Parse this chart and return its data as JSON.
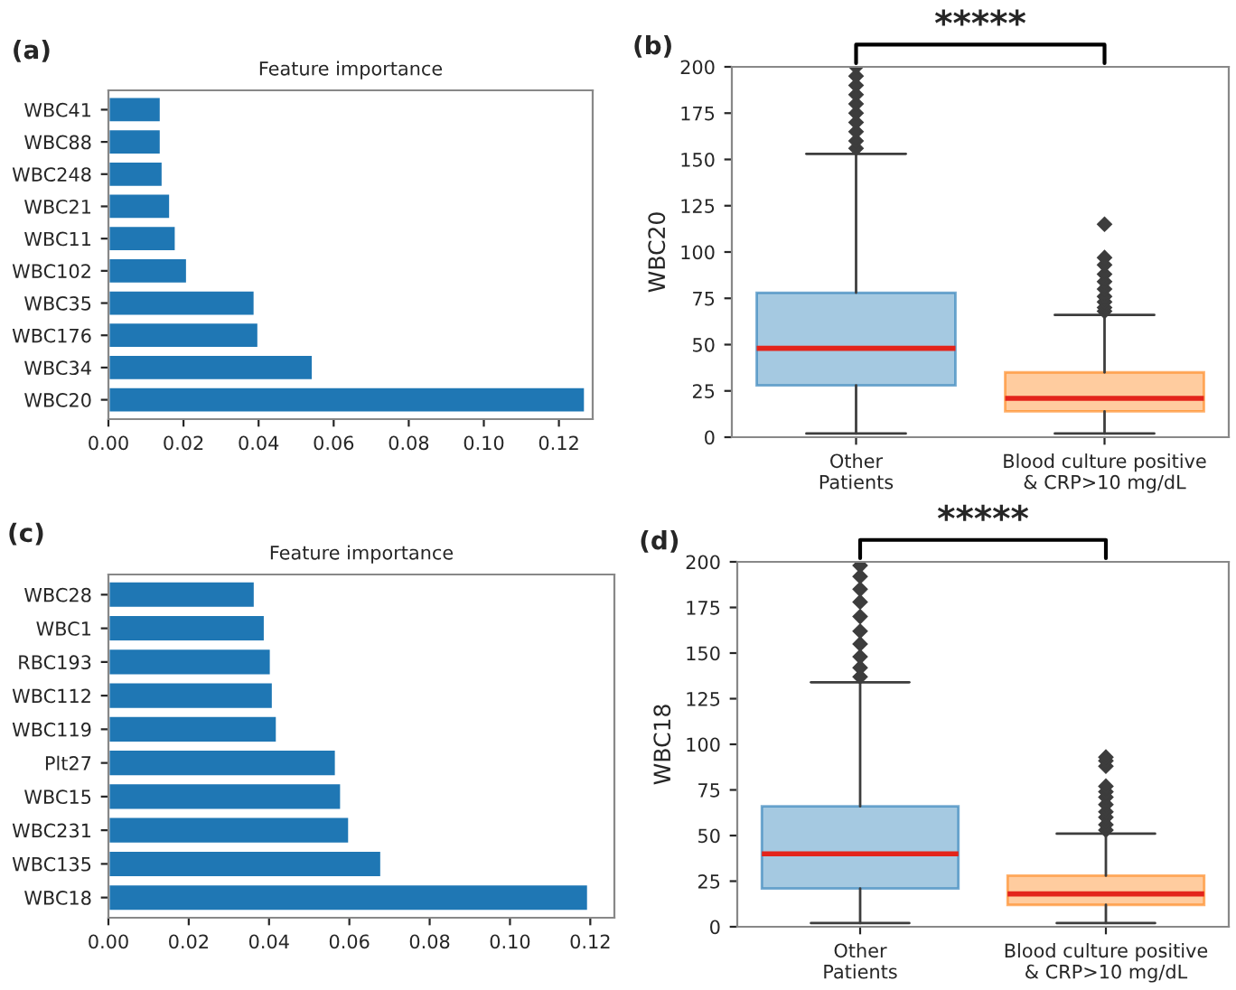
{
  "chart_data": [
    {
      "type": "bar",
      "orientation": "horizontal",
      "title": "Feature importance",
      "annotations": [
        "(a)"
      ],
      "categories": [
        "WBC41",
        "WBC88",
        "WBC248",
        "WBC21",
        "WBC11",
        "WBC102",
        "WBC35",
        "WBC176",
        "WBC34",
        "WBC20"
      ],
      "values": [
        0.014,
        0.014,
        0.0145,
        0.0165,
        0.018,
        0.021,
        0.039,
        0.04,
        0.0545,
        0.127
      ],
      "color": "#1f77b4",
      "xlim": [
        0,
        0.129
      ],
      "xticks": [
        {
          "value": 0,
          "label": "0.00"
        },
        {
          "value": 0.02,
          "label": "0.02"
        },
        {
          "value": 0.04,
          "label": "0.04"
        },
        {
          "value": 0.06,
          "label": "0.06"
        },
        {
          "value": 0.08,
          "label": "0.08"
        },
        {
          "value": 0.1,
          "label": "0.10"
        },
        {
          "value": 0.12,
          "label": "0.12"
        }
      ],
      "grid": false
    },
    {
      "type": "box",
      "ylabel": "WBC20",
      "annotations": [
        "(b)",
        "*****"
      ],
      "categories": [
        "Other\nPatients",
        "Blood culture positive\n& CRP>10 mg/dL"
      ],
      "series": [
        {
          "color": "#1f77b4",
          "boxes": [
            {
              "low": 2,
              "q1": 28,
              "median": 48,
              "q3": 78,
              "high": 153,
              "outliers": [
                156,
                160,
                165,
                170,
                175,
                180,
                185,
                190,
                195,
                200
              ]
            },
            null
          ]
        },
        {
          "color": "#ff7f0e",
          "boxes": [
            null,
            {
              "low": 2,
              "q1": 14,
              "median": 21,
              "q3": 35,
              "high": 66,
              "outliers": [
                68,
                70,
                73,
                76,
                80,
                84,
                88,
                93,
                97,
                115
              ]
            }
          ]
        }
      ],
      "ylim": [
        0,
        200
      ],
      "yticks": [
        0,
        25,
        50,
        75,
        100,
        125,
        150,
        175,
        200
      ],
      "grid": false,
      "marker": "diamond"
    },
    {
      "type": "bar",
      "orientation": "horizontal",
      "title": "Feature importance",
      "annotations": [
        "(c)"
      ],
      "categories": [
        "WBC28",
        "WBC1",
        "RBC193",
        "WBC112",
        "WBC119",
        "Plt27",
        "WBC15",
        "WBC231",
        "WBC135",
        "WBC18"
      ],
      "values": [
        0.0365,
        0.039,
        0.0405,
        0.041,
        0.042,
        0.0567,
        0.058,
        0.06,
        0.068,
        0.1195
      ],
      "color": "#1f77b4",
      "xlim": [
        0,
        0.126
      ],
      "xticks": [
        {
          "value": 0,
          "label": "0.00"
        },
        {
          "value": 0.02,
          "label": "0.02"
        },
        {
          "value": 0.04,
          "label": "0.04"
        },
        {
          "value": 0.06,
          "label": "0.06"
        },
        {
          "value": 0.08,
          "label": "0.08"
        },
        {
          "value": 0.1,
          "label": "0.10"
        },
        {
          "value": 0.12,
          "label": "0.12"
        }
      ],
      "grid": false
    },
    {
      "type": "box",
      "ylabel": "WBC18",
      "annotations": [
        "(d)",
        "*****"
      ],
      "categories": [
        "Other\nPatients",
        "Blood culture positive\n& CRP>10 mg/dL"
      ],
      "series": [
        {
          "color": "#1f77b4",
          "boxes": [
            {
              "low": 2,
              "q1": 21,
              "median": 40,
              "q3": 66,
              "high": 134,
              "outliers": [
                137,
                142,
                148,
                155,
                162,
                170,
                178,
                185,
                192,
                198
              ]
            },
            null
          ]
        },
        {
          "color": "#ff7f0e",
          "boxes": [
            null,
            {
              "low": 2,
              "q1": 12,
              "median": 18,
              "q3": 28,
              "high": 51,
              "outliers": [
                53,
                56,
                60,
                63,
                67,
                71,
                74,
                77,
                88,
                91,
                93
              ]
            }
          ]
        }
      ],
      "ylim": [
        0,
        200
      ],
      "yticks": [
        0,
        25,
        50,
        75,
        100,
        125,
        150,
        175,
        200
      ],
      "grid": false,
      "marker": "diamond"
    }
  ]
}
